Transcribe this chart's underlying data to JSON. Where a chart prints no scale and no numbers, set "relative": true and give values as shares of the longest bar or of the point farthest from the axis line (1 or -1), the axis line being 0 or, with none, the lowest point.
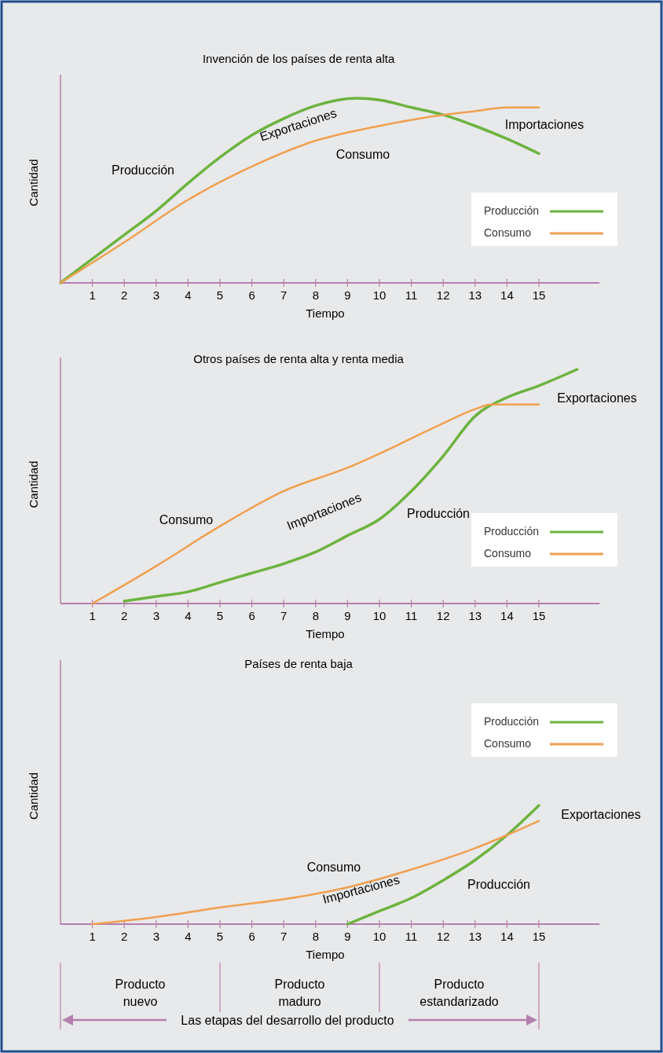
{
  "chart_data": [
    {
      "type": "line",
      "title": "Invención de los países de renta alta",
      "xlabel": "Tiempo",
      "ylabel": "Cantidad",
      "relative": true,
      "xlim": [
        0,
        16.9
      ],
      "xticks": [
        1,
        2,
        3,
        4,
        5,
        6,
        7,
        8,
        9,
        10,
        11,
        12,
        13,
        14,
        15
      ],
      "legend": "right",
      "grid": false,
      "series": [
        {
          "name": "Producción",
          "color": "#6db33f",
          "x": [
            0,
            2,
            3,
            4,
            5,
            6,
            7,
            8,
            9.3,
            10,
            11,
            12,
            13,
            14,
            15
          ],
          "values": [
            0,
            0.26,
            0.39,
            0.54,
            0.68,
            0.8,
            0.89,
            0.96,
            1,
            0.99,
            0.95,
            0.91,
            0.85,
            0.78,
            0.7
          ]
        },
        {
          "name": "Consumo",
          "color": "#f0a050",
          "x": [
            0,
            2,
            4,
            6,
            8,
            10,
            12,
            13,
            14,
            15
          ],
          "values": [
            0,
            0.22,
            0.45,
            0.63,
            0.77,
            0.85,
            0.91,
            0.93,
            0.95,
            0.95
          ]
        }
      ],
      "annotations": [
        "Producción",
        "Exportaciones",
        "Consumo",
        "Importaciones"
      ]
    },
    {
      "type": "line",
      "title": "Otros países de renta alta y renta media",
      "xlabel": "Tiempo",
      "ylabel": "Cantidad",
      "relative": true,
      "xlim": [
        0,
        16.9
      ],
      "xticks": [
        1,
        2,
        3,
        4,
        5,
        6,
        7,
        8,
        9,
        10,
        11,
        12,
        13,
        14,
        15
      ],
      "legend": "right",
      "grid": false,
      "series": [
        {
          "name": "Producción",
          "color": "#6db33f",
          "x": [
            2,
            3,
            4,
            5,
            6,
            7,
            8,
            9,
            10,
            11,
            12,
            13,
            14,
            15,
            16.2
          ],
          "values": [
            0.01,
            0.03,
            0.05,
            0.09,
            0.13,
            0.17,
            0.22,
            0.29,
            0.36,
            0.48,
            0.63,
            0.8,
            0.88,
            0.93,
            1
          ]
        },
        {
          "name": "Consumo",
          "color": "#f0a050",
          "x": [
            1,
            3,
            5,
            7,
            9,
            10,
            12,
            13,
            13.5,
            14,
            15
          ],
          "values": [
            0,
            0.16,
            0.33,
            0.48,
            0.58,
            0.64,
            0.77,
            0.83,
            0.85,
            0.85,
            0.85
          ]
        }
      ],
      "annotations": [
        "Consumo",
        "Importaciones",
        "Producción",
        "Exportaciones"
      ]
    },
    {
      "type": "line",
      "title": "Países de renta baja",
      "xlabel": "Tiempo",
      "ylabel": "Cantidad",
      "relative": true,
      "xlim": [
        0,
        16.9
      ],
      "xticks": [
        1,
        2,
        3,
        4,
        5,
        6,
        7,
        8,
        9,
        10,
        11,
        12,
        13,
        14,
        15
      ],
      "legend": "top right",
      "grid": false,
      "series": [
        {
          "name": "Producción",
          "color": "#6db33f",
          "x": [
            9,
            10,
            11,
            12,
            13,
            14,
            15
          ],
          "values": [
            0,
            0.11,
            0.22,
            0.37,
            0.54,
            0.75,
            1
          ]
        },
        {
          "name": "Consumo",
          "color": "#f0a050",
          "x": [
            1,
            3,
            5,
            7,
            9,
            11,
            13,
            14,
            15
          ],
          "values": [
            0,
            0.06,
            0.14,
            0.21,
            0.31,
            0.46,
            0.64,
            0.75,
            0.87
          ]
        }
      ],
      "annotations": [
        "Consumo",
        "Importaciones",
        "Producción",
        "Exportaciones"
      ]
    },
    {
      "type": "other",
      "annotations": [
        "Producto nuevo",
        "Producto maduro",
        "Producto estandarizado",
        "Las etapas del desarrollo del producto"
      ]
    }
  ]
}
